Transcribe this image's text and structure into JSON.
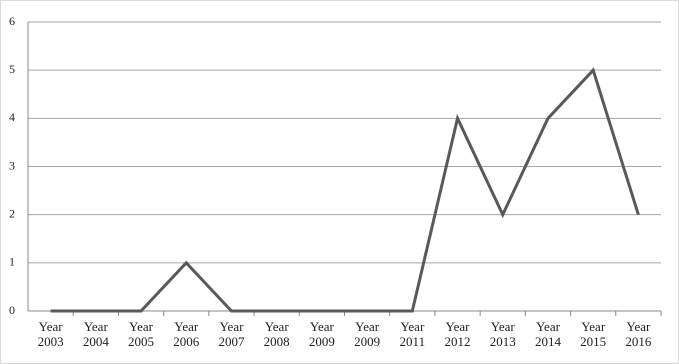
{
  "chart_data": {
    "type": "line",
    "categories": [
      "Year 2003",
      "Year 2004",
      "Year 2005",
      "Year 2006",
      "Year 2007",
      "Year 2008",
      "Year 2009",
      "Year 2009",
      "Year 2011",
      "Year 2012",
      "Year 2013",
      "Year 2014",
      "Year 2015",
      "Year 2016"
    ],
    "values": [
      0,
      0,
      0,
      1,
      0,
      0,
      0,
      0,
      0,
      4,
      2,
      4,
      5,
      2
    ],
    "color": "#595959",
    "ylim": [
      0,
      6
    ],
    "yticks": [
      0,
      1,
      2,
      3,
      4,
      5,
      6
    ],
    "grid": true
  }
}
